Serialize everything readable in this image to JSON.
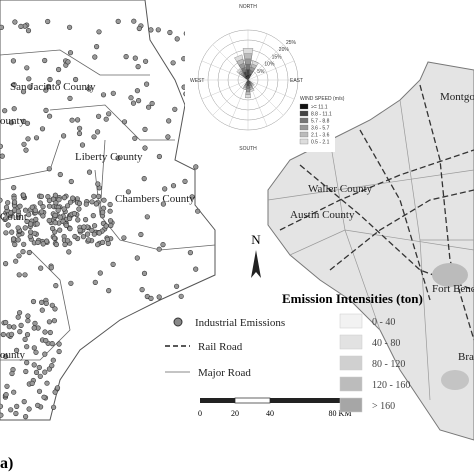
{
  "map": {
    "left_labels": [
      "San Jacinto County",
      "Liberty County",
      "Chambers County",
      "ounty",
      "Count",
      "ounty"
    ],
    "right_labels": [
      "Waller County",
      "Austin County",
      "Fort Bend Coun",
      "Montgo",
      "Bra"
    ],
    "wind_rose": {
      "directions": {
        "north": "NORTH",
        "south": "SOUTH",
        "east": "EAST",
        "west": "WEST"
      },
      "rings": [
        "5%",
        "10%",
        "15%",
        "20%",
        "25%"
      ],
      "legend_title": "WIND SPEED (m/s)",
      "speed_classes": [
        ">= 11.1",
        "8.8 - 11.1",
        "5.7 - 8.8",
        "3.6 - 5.7",
        "2.1 - 3.6",
        "0.5 - 2.1"
      ]
    },
    "north_arrow": "N",
    "legend": {
      "items": [
        "Industrial Emissions",
        "Rail Road",
        "Major Road"
      ]
    },
    "scale": {
      "ticks": [
        "0",
        "20",
        "40",
        "80 KM"
      ]
    },
    "intensity": {
      "title": "Emission Intensities (ton)",
      "classes": [
        "0 - 40",
        "40 - 80",
        "80 - 120",
        "120 - 160",
        "> 160"
      ]
    },
    "panel_label": "a)"
  }
}
